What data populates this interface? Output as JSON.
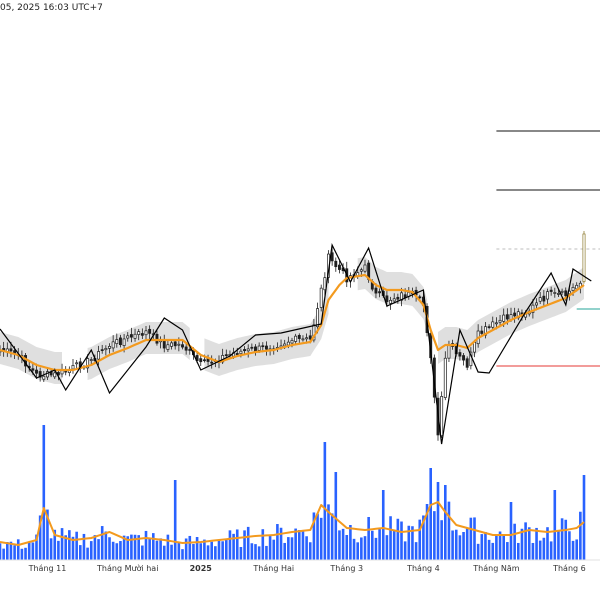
{
  "header": {
    "timestamp": "05, 2025 16:03 UTC+7"
  },
  "colors": {
    "candle_up": "#1f1f1f",
    "candle_down": "#1f1f1f",
    "ma_line": "#f39a1e",
    "band_fill": "#dcdcdc",
    "zigzag": "#000000",
    "volume_bar": "#2962ff",
    "volume_ma": "#f39a1e",
    "level_green": "#26a69a",
    "level_red": "#e53935",
    "level_gray": "#bdbdbd",
    "last_candle": "#8d7a2e"
  },
  "chart_data": {
    "type": "candlestick",
    "xaxis": {
      "ticks": [
        {
          "label": "Tháng 11",
          "index": 13
        },
        {
          "label": "Tháng Mười hai",
          "index": 35
        },
        {
          "label": "2025",
          "index": 55,
          "bold": true
        },
        {
          "label": "Tháng Hai",
          "index": 75
        },
        {
          "label": "Tháng 3",
          "index": 95
        },
        {
          "label": "Tháng 4",
          "index": 116
        },
        {
          "label": "Tháng Năm",
          "index": 136
        },
        {
          "label": "Tháng 6",
          "index": 156
        }
      ]
    },
    "close_anchors": [
      [
        0,
        350
      ],
      [
        5,
        355
      ],
      [
        10,
        375
      ],
      [
        15,
        375
      ],
      [
        20,
        368
      ],
      [
        25,
        360
      ],
      [
        30,
        345
      ],
      [
        35,
        338
      ],
      [
        40,
        332
      ],
      [
        45,
        345
      ],
      [
        50,
        345
      ],
      [
        55,
        365
      ],
      [
        60,
        358
      ],
      [
        65,
        352
      ],
      [
        70,
        350
      ],
      [
        75,
        345
      ],
      [
        80,
        340
      ],
      [
        85,
        340
      ],
      [
        88,
        290
      ],
      [
        90,
        258
      ],
      [
        93,
        270
      ],
      [
        95,
        278
      ],
      [
        100,
        268
      ],
      [
        103,
        295
      ],
      [
        106,
        300
      ],
      [
        110,
        295
      ],
      [
        113,
        295
      ],
      [
        116,
        305
      ],
      [
        118,
        355
      ],
      [
        119,
        400
      ],
      [
        120,
        435
      ],
      [
        121,
        400
      ],
      [
        122,
        360
      ],
      [
        123,
        345
      ],
      [
        125,
        355
      ],
      [
        128,
        365
      ],
      [
        131,
        335
      ],
      [
        135,
        325
      ],
      [
        140,
        315
      ],
      [
        145,
        310
      ],
      [
        150,
        295
      ],
      [
        155,
        295
      ],
      [
        158,
        285
      ],
      [
        159,
        280
      ],
      [
        160,
        234
      ]
    ],
    "ma_anchors": [
      [
        0,
        350
      ],
      [
        5,
        355
      ],
      [
        10,
        365
      ],
      [
        15,
        370
      ],
      [
        20,
        370
      ],
      [
        25,
        365
      ],
      [
        30,
        355
      ],
      [
        35,
        348
      ],
      [
        40,
        340
      ],
      [
        45,
        340
      ],
      [
        50,
        340
      ],
      [
        55,
        355
      ],
      [
        60,
        362
      ],
      [
        65,
        356
      ],
      [
        70,
        352
      ],
      [
        75,
        350
      ],
      [
        80,
        345
      ],
      [
        85,
        342
      ],
      [
        88,
        325
      ],
      [
        90,
        300
      ],
      [
        93,
        285
      ],
      [
        95,
        278
      ],
      [
        100,
        275
      ],
      [
        103,
        285
      ],
      [
        106,
        290
      ],
      [
        110,
        290
      ],
      [
        113,
        292
      ],
      [
        116,
        305
      ],
      [
        118,
        330
      ],
      [
        120,
        350
      ],
      [
        122,
        345
      ],
      [
        125,
        345
      ],
      [
        128,
        348
      ],
      [
        131,
        338
      ],
      [
        135,
        330
      ],
      [
        140,
        320
      ],
      [
        145,
        312
      ],
      [
        150,
        305
      ],
      [
        155,
        298
      ],
      [
        160,
        285
      ]
    ],
    "zigzag": [
      [
        0,
        329
      ],
      [
        10,
        378
      ],
      [
        15,
        370
      ],
      [
        18,
        390
      ],
      [
        25,
        350
      ],
      [
        30,
        393
      ],
      [
        40,
        347
      ],
      [
        45,
        318
      ],
      [
        50,
        330
      ],
      [
        55,
        370
      ],
      [
        63,
        356
      ],
      [
        70,
        335
      ],
      [
        77,
        333
      ],
      [
        88,
        324
      ],
      [
        91,
        245
      ],
      [
        96,
        282
      ],
      [
        101,
        248
      ],
      [
        106,
        306
      ],
      [
        116,
        290
      ],
      [
        121,
        444
      ],
      [
        126,
        330
      ],
      [
        131,
        372
      ],
      [
        134,
        373
      ],
      [
        144,
        312
      ],
      [
        151,
        273
      ],
      [
        155,
        305
      ],
      [
        157,
        269
      ],
      [
        162,
        281
      ]
    ],
    "volume_anchors": [
      [
        0,
        18
      ],
      [
        5,
        15
      ],
      [
        10,
        20
      ],
      [
        12,
        52
      ],
      [
        15,
        25
      ],
      [
        20,
        20
      ],
      [
        25,
        22
      ],
      [
        30,
        28
      ],
      [
        35,
        20
      ],
      [
        40,
        22
      ],
      [
        45,
        20
      ],
      [
        50,
        17
      ],
      [
        55,
        18
      ],
      [
        60,
        20
      ],
      [
        65,
        22
      ],
      [
        70,
        24
      ],
      [
        75,
        25
      ],
      [
        80,
        28
      ],
      [
        85,
        30
      ],
      [
        88,
        55
      ],
      [
        90,
        48
      ],
      [
        95,
        32
      ],
      [
        100,
        30
      ],
      [
        105,
        32
      ],
      [
        110,
        28
      ],
      [
        115,
        30
      ],
      [
        118,
        55
      ],
      [
        120,
        58
      ],
      [
        122,
        48
      ],
      [
        125,
        35
      ],
      [
        130,
        30
      ],
      [
        135,
        25
      ],
      [
        140,
        25
      ],
      [
        145,
        30
      ],
      [
        150,
        28
      ],
      [
        155,
        30
      ],
      [
        158,
        32
      ],
      [
        160,
        38
      ]
    ],
    "volume_spikes": [
      {
        "index": 12,
        "value": 135
      },
      {
        "index": 48,
        "value": 80
      },
      {
        "index": 89,
        "value": 118
      },
      {
        "index": 92,
        "value": 88
      },
      {
        "index": 105,
        "value": 70
      },
      {
        "index": 118,
        "value": 92
      },
      {
        "index": 120,
        "value": 78
      },
      {
        "index": 122,
        "value": 75
      },
      {
        "index": 140,
        "value": 58
      },
      {
        "index": 152,
        "value": 70
      },
      {
        "index": 160,
        "value": 85
      }
    ],
    "levels": [
      {
        "price": 131,
        "color": "#111111",
        "style": "solid",
        "start_index": 136
      },
      {
        "price": 190,
        "color": "#111111",
        "style": "solid",
        "start_index": 136
      },
      {
        "price": 249,
        "color": "#bdbdbd",
        "style": "dashed",
        "start_index": 136
      },
      {
        "price": 309,
        "color": "#26a69a",
        "style": "solid",
        "start_index": 158
      },
      {
        "price": 366,
        "color": "#e53935",
        "style": "solid",
        "start_index": 136
      }
    ]
  }
}
